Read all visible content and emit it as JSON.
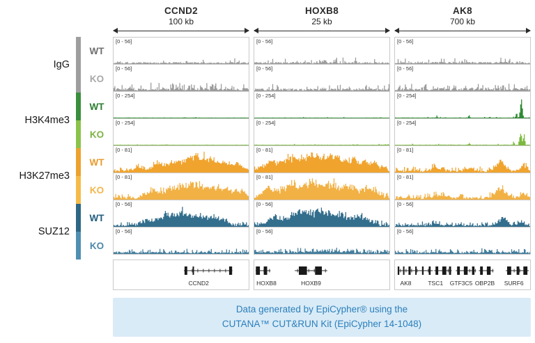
{
  "footer": {
    "line1": "Data generated by EpiCypher® using the",
    "line2": "CUTANA™ CUT&RUN Kit (EpiCypher 14-1048)"
  },
  "chart_data": {
    "type": "area",
    "subtype": "genome-browser-signal-tracks",
    "loci": [
      {
        "gene": "CCND2",
        "window": "100 kb"
      },
      {
        "gene": "HOXB8",
        "window": "25 kb"
      },
      {
        "gene": "AK8",
        "window": "700 kb"
      }
    ],
    "groups": [
      {
        "name": "IgG",
        "wt": {
          "label": "WT",
          "color": "#6f6f6f",
          "bar": "#9e9e9e"
        },
        "ko": {
          "label": "KO",
          "color": "#a9a9a9",
          "bar": "#9e9e9e"
        }
      },
      {
        "name": "H3K4me3",
        "wt": {
          "label": "WT",
          "color": "#2e7d32",
          "bar": "#3a8f3c"
        },
        "ko": {
          "label": "KO",
          "color": "#7cb342",
          "bar": "#8bc34a"
        }
      },
      {
        "name": "H3K27me3",
        "wt": {
          "label": "WT",
          "color": "#e89b2d",
          "bar": "#eda22f"
        },
        "ko": {
          "label": "KO",
          "color": "#f3b64a",
          "bar": "#f5bb4a"
        }
      },
      {
        "name": "SUZ12",
        "wt": {
          "label": "WT",
          "color": "#235e7d",
          "bar": "#2d6784"
        },
        "ko": {
          "label": "KO",
          "color": "#4d88a8",
          "bar": "#4f8fb0"
        }
      }
    ],
    "tracks": [
      {
        "group": "IgG",
        "condition": "WT",
        "range": "[0 - 56]",
        "y_range": [
          0,
          56
        ],
        "color": "#9c9c9c",
        "cells": [
          {
            "seed": 101,
            "base": 0.045,
            "spikeP": 0.1,
            "spikeH": 0.22,
            "peaks": []
          },
          {
            "seed": 102,
            "base": 0.045,
            "spikeP": 0.1,
            "spikeH": 0.25,
            "peaks": [
              {
                "c": 0.52,
                "w": 0.008,
                "h": 0.18
              },
              {
                "c": 0.75,
                "w": 0.006,
                "h": 0.22
              }
            ]
          },
          {
            "seed": 103,
            "base": 0.05,
            "spikeP": 0.14,
            "spikeH": 0.22,
            "peaks": []
          }
        ]
      },
      {
        "group": "IgG",
        "condition": "KO",
        "range": "[0 - 56]",
        "y_range": [
          0,
          56
        ],
        "color": "#9c9c9c",
        "cells": [
          {
            "seed": 104,
            "base": 0.07,
            "spikeP": 0.3,
            "spikeH": 0.26,
            "peaks": []
          },
          {
            "seed": 105,
            "base": 0.06,
            "spikeP": 0.22,
            "spikeH": 0.24,
            "peaks": []
          },
          {
            "seed": 106,
            "base": 0.07,
            "spikeP": 0.3,
            "spikeH": 0.26,
            "peaks": []
          }
        ]
      },
      {
        "group": "H3K4me3",
        "condition": "WT",
        "range": "[0 - 254]",
        "y_range": [
          0,
          254
        ],
        "color": "#2e8b33",
        "cells": [
          {
            "seed": 107,
            "base": 0.018,
            "spikeP": 0.05,
            "spikeH": 0.05,
            "peaks": []
          },
          {
            "seed": 108,
            "base": 0.018,
            "spikeP": 0.04,
            "spikeH": 0.04,
            "peaks": []
          },
          {
            "seed": 109,
            "base": 0.02,
            "spikeP": 0.06,
            "spikeH": 0.06,
            "peaks": [
              {
                "c": 0.935,
                "w": 0.007,
                "h": 0.95
              },
              {
                "c": 0.9,
                "w": 0.005,
                "h": 0.25
              },
              {
                "c": 0.55,
                "w": 0.005,
                "h": 0.15
              },
              {
                "c": 0.31,
                "w": 0.004,
                "h": 0.1
              },
              {
                "c": 0.7,
                "w": 0.004,
                "h": 0.08
              }
            ]
          }
        ]
      },
      {
        "group": "H3K4me3",
        "condition": "KO",
        "range": "[0 - 254]",
        "y_range": [
          0,
          254
        ],
        "color": "#7cb93e",
        "cells": [
          {
            "seed": 110,
            "base": 0.018,
            "spikeP": 0.05,
            "spikeH": 0.05,
            "peaks": []
          },
          {
            "seed": 111,
            "base": 0.018,
            "spikeP": 0.04,
            "spikeH": 0.04,
            "peaks": []
          },
          {
            "seed": 112,
            "base": 0.02,
            "spikeP": 0.06,
            "spikeH": 0.06,
            "peaks": [
              {
                "c": 0.93,
                "w": 0.006,
                "h": 0.88
              },
              {
                "c": 0.955,
                "w": 0.006,
                "h": 0.55
              },
              {
                "c": 0.88,
                "w": 0.004,
                "h": 0.18
              },
              {
                "c": 0.55,
                "w": 0.004,
                "h": 0.1
              }
            ]
          }
        ]
      },
      {
        "group": "H3K27me3",
        "condition": "WT",
        "range": "[0 - 81]",
        "y_range": [
          0,
          81
        ],
        "color": "#f0a42e",
        "cells": [
          {
            "seed": 113,
            "base": 0.06,
            "spikeP": 0.45,
            "spikeH": 0.18,
            "peaks": [
              {
                "c": 0.18,
                "w": 0.04,
                "h": 0.18
              },
              {
                "c": 0.33,
                "w": 0.05,
                "h": 0.3
              },
              {
                "c": 0.47,
                "w": 0.07,
                "h": 0.45
              },
              {
                "c": 0.6,
                "w": 0.05,
                "h": 0.62
              },
              {
                "c": 0.7,
                "w": 0.05,
                "h": 0.55
              },
              {
                "c": 0.82,
                "w": 0.05,
                "h": 0.4
              },
              {
                "c": 0.93,
                "w": 0.04,
                "h": 0.3
              }
            ]
          },
          {
            "seed": 114,
            "base": 0.08,
            "spikeP": 0.5,
            "spikeH": 0.2,
            "peaks": [
              {
                "c": 0.12,
                "w": 0.05,
                "h": 0.4
              },
              {
                "c": 0.28,
                "w": 0.07,
                "h": 0.6
              },
              {
                "c": 0.44,
                "w": 0.07,
                "h": 0.72
              },
              {
                "c": 0.58,
                "w": 0.06,
                "h": 0.62
              },
              {
                "c": 0.72,
                "w": 0.06,
                "h": 0.55
              },
              {
                "c": 0.87,
                "w": 0.05,
                "h": 0.38
              }
            ]
          },
          {
            "seed": 115,
            "base": 0.06,
            "spikeP": 0.4,
            "spikeH": 0.18,
            "peaks": [
              {
                "c": 0.3,
                "w": 0.04,
                "h": 0.16
              },
              {
                "c": 0.55,
                "w": 0.03,
                "h": 0.14
              },
              {
                "c": 0.78,
                "w": 0.035,
                "h": 0.45
              },
              {
                "c": 0.95,
                "w": 0.02,
                "h": 0.3
              }
            ]
          }
        ]
      },
      {
        "group": "H3K27me3",
        "condition": "KO",
        "range": "[0 - 81]",
        "y_range": [
          0,
          81
        ],
        "color": "#f2b144",
        "cells": [
          {
            "seed": 116,
            "base": 0.07,
            "spikeP": 0.45,
            "spikeH": 0.18,
            "peaks": [
              {
                "c": 0.3,
                "w": 0.05,
                "h": 0.35
              },
              {
                "c": 0.46,
                "w": 0.07,
                "h": 0.55
              },
              {
                "c": 0.6,
                "w": 0.06,
                "h": 0.65
              },
              {
                "c": 0.73,
                "w": 0.05,
                "h": 0.5
              },
              {
                "c": 0.85,
                "w": 0.05,
                "h": 0.42
              },
              {
                "c": 0.95,
                "w": 0.03,
                "h": 0.3
              }
            ]
          },
          {
            "seed": 117,
            "base": 0.08,
            "spikeP": 0.5,
            "spikeH": 0.2,
            "peaks": [
              {
                "c": 0.1,
                "w": 0.04,
                "h": 0.45
              },
              {
                "c": 0.26,
                "w": 0.06,
                "h": 0.65
              },
              {
                "c": 0.42,
                "w": 0.07,
                "h": 0.7
              },
              {
                "c": 0.57,
                "w": 0.06,
                "h": 0.65
              },
              {
                "c": 0.71,
                "w": 0.06,
                "h": 0.5
              },
              {
                "c": 0.86,
                "w": 0.05,
                "h": 0.42
              }
            ]
          },
          {
            "seed": 118,
            "base": 0.065,
            "spikeP": 0.42,
            "spikeH": 0.18,
            "peaks": [
              {
                "c": 0.33,
                "w": 0.04,
                "h": 0.15
              },
              {
                "c": 0.78,
                "w": 0.035,
                "h": 0.5
              },
              {
                "c": 0.95,
                "w": 0.02,
                "h": 0.28
              }
            ]
          }
        ]
      },
      {
        "group": "SUZ12",
        "condition": "WT",
        "range": "[0 - 56]",
        "y_range": [
          0,
          56
        ],
        "color": "#336e8d",
        "cells": [
          {
            "seed": 119,
            "base": 0.05,
            "spikeP": 0.4,
            "spikeH": 0.15,
            "peaks": [
              {
                "c": 0.25,
                "w": 0.04,
                "h": 0.28
              },
              {
                "c": 0.38,
                "w": 0.05,
                "h": 0.55
              },
              {
                "c": 0.5,
                "w": 0.04,
                "h": 0.72
              },
              {
                "c": 0.6,
                "w": 0.04,
                "h": 0.55
              },
              {
                "c": 0.7,
                "w": 0.04,
                "h": 0.45
              },
              {
                "c": 0.8,
                "w": 0.04,
                "h": 0.35
              }
            ]
          },
          {
            "seed": 120,
            "base": 0.06,
            "spikeP": 0.45,
            "spikeH": 0.18,
            "peaks": [
              {
                "c": 0.15,
                "w": 0.05,
                "h": 0.4
              },
              {
                "c": 0.33,
                "w": 0.07,
                "h": 0.68
              },
              {
                "c": 0.5,
                "w": 0.06,
                "h": 0.75
              },
              {
                "c": 0.65,
                "w": 0.06,
                "h": 0.55
              },
              {
                "c": 0.8,
                "w": 0.05,
                "h": 0.4
              }
            ]
          },
          {
            "seed": 121,
            "base": 0.05,
            "spikeP": 0.35,
            "spikeH": 0.15,
            "peaks": [
              {
                "c": 0.3,
                "w": 0.03,
                "h": 0.12
              },
              {
                "c": 0.8,
                "w": 0.03,
                "h": 0.4
              },
              {
                "c": 0.93,
                "w": 0.02,
                "h": 0.22
              }
            ]
          }
        ]
      },
      {
        "group": "SUZ12",
        "condition": "KO",
        "range": "[0 - 56]",
        "y_range": [
          0,
          56
        ],
        "color": "#437d9c",
        "cells": [
          {
            "seed": 122,
            "base": 0.05,
            "spikeP": 0.35,
            "spikeH": 0.16,
            "peaks": []
          },
          {
            "seed": 123,
            "base": 0.055,
            "spikeP": 0.38,
            "spikeH": 0.17,
            "peaks": [
              {
                "c": 0.5,
                "w": 0.15,
                "h": 0.06
              }
            ]
          },
          {
            "seed": 124,
            "base": 0.05,
            "spikeP": 0.35,
            "spikeH": 0.16,
            "peaks": []
          }
        ]
      }
    ],
    "gene_panels": [
      {
        "genes": [
          {
            "label": "CCND2",
            "label_x": 0.63,
            "line": [
              0.52,
              0.88
            ],
            "boxes": [
              [
                0.525,
                0.02
              ],
              [
                0.585,
                0.01
              ],
              [
                0.855,
                0.022
              ]
            ]
          }
        ]
      },
      {
        "genes": [
          {
            "label": "HOXB8",
            "label_x": 0.09,
            "line": [
              0.01,
              0.12
            ],
            "boxes": [
              [
                0.012,
                0.03
              ],
              [
                0.07,
                0.025
              ]
            ]
          },
          {
            "label": "HOXB9",
            "label_x": 0.42,
            "line": [
              0.3,
              0.54
            ],
            "boxes": [
              [
                0.33,
                0.06
              ],
              [
                0.45,
                0.05
              ]
            ]
          }
        ]
      },
      {
        "genes": [
          {
            "label": "AK8",
            "label_x": 0.08,
            "line": [
              0.02,
              0.28
            ],
            "boxes": [
              [
                0.02,
                0.012
              ],
              [
                0.06,
                0.01
              ],
              [
                0.1,
                0.016
              ],
              [
                0.15,
                0.01
              ],
              [
                0.2,
                0.012
              ],
              [
                0.25,
                0.014
              ]
            ]
          },
          {
            "label": "TSC1",
            "label_x": 0.3,
            "line": [
              0.29,
              0.42
            ],
            "boxes": [
              [
                0.3,
                0.02
              ],
              [
                0.35,
                0.03
              ],
              [
                0.4,
                0.015
              ]
            ]
          },
          {
            "label": "GTF3C5",
            "label_x": 0.49,
            "line": [
              0.45,
              0.6
            ],
            "boxes": [
              [
                0.46,
                0.02
              ],
              [
                0.51,
                0.028
              ],
              [
                0.57,
                0.018
              ]
            ]
          },
          {
            "label": "OBP2B",
            "label_x": 0.665,
            "line": [
              0.62,
              0.73
            ],
            "boxes": [
              [
                0.63,
                0.02
              ],
              [
                0.68,
                0.028
              ]
            ]
          },
          {
            "label": "SURF6",
            "label_x": 0.88,
            "line": [
              0.82,
              0.99
            ],
            "boxes": [
              [
                0.83,
                0.03
              ],
              [
                0.9,
                0.02
              ],
              [
                0.95,
                0.03
              ]
            ]
          }
        ]
      }
    ]
  }
}
